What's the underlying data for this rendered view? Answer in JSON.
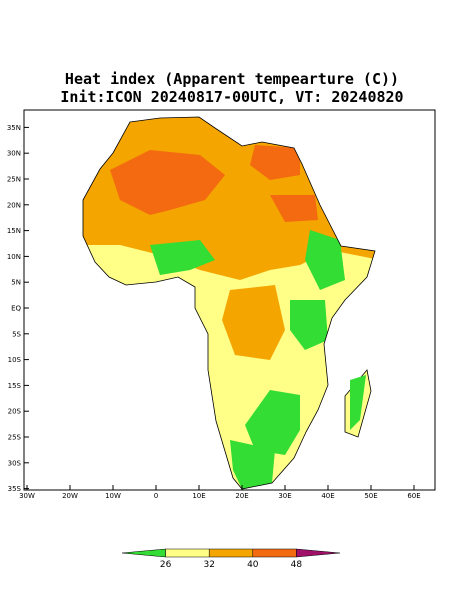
{
  "map": {
    "title": "Heat index (Apparent tempearture (C))",
    "subtitle": "Init:ICON 20240817-00UTC, VT: 20240820",
    "lat_ticks": [
      {
        "value": 35,
        "label": "35N"
      },
      {
        "value": 30,
        "label": "30N"
      },
      {
        "value": 25,
        "label": "25N"
      },
      {
        "value": 20,
        "label": "20N"
      },
      {
        "value": 15,
        "label": "15N"
      },
      {
        "value": 10,
        "label": "10N"
      },
      {
        "value": 5,
        "label": "5N"
      },
      {
        "value": 0,
        "label": "EQ"
      },
      {
        "value": -5,
        "label": "5S"
      },
      {
        "value": -10,
        "label": "10S"
      },
      {
        "value": -15,
        "label": "15S"
      },
      {
        "value": -20,
        "label": "20S"
      },
      {
        "value": -25,
        "label": "25S"
      },
      {
        "value": -30,
        "label": "30S"
      },
      {
        "value": -35,
        "label": "35S"
      }
    ],
    "lon_ticks": [
      {
        "value": -30,
        "label": "30W"
      },
      {
        "value": -20,
        "label": "20W"
      },
      {
        "value": -10,
        "label": "10W"
      },
      0,
      {
        "value": 10,
        "label": "10E"
      },
      {
        "value": 20,
        "label": "20E"
      },
      {
        "value": 30,
        "label": "30E"
      },
      {
        "value": 40,
        "label": "40E"
      },
      {
        "value": 50,
        "label": "50E"
      },
      {
        "value": 60,
        "label": "60E"
      }
    ],
    "colorbar": {
      "levels": [
        26,
        32,
        40,
        48
      ],
      "colors": [
        "#33dd33",
        "#ffff88",
        "#f5a500",
        "#f36a10",
        "#a0106a"
      ]
    }
  }
}
